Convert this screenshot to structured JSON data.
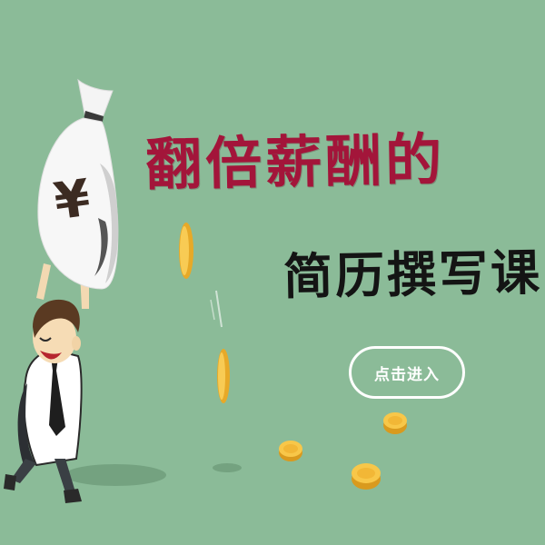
{
  "banner": {
    "headline": "翻倍薪酬的",
    "subheadline": "简历撰写课",
    "enter_label": "点击进入",
    "currency_symbol": "¥"
  },
  "colors": {
    "background": "#8bbb98",
    "headline": "#a3153a",
    "subheadline": "#141414",
    "button_border": "#ffffff",
    "coin": "#f2b736"
  },
  "icons": [
    "money-bag-icon",
    "gold-coin-icon"
  ]
}
